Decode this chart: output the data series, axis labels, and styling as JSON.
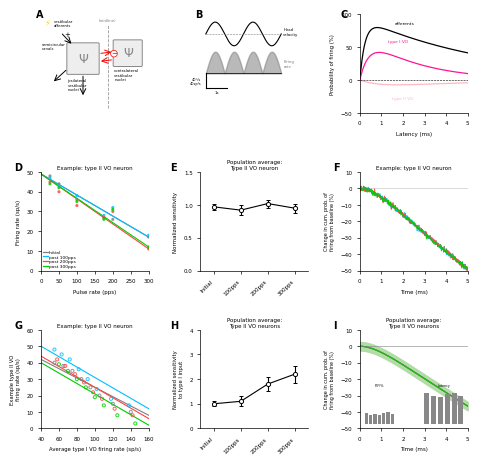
{
  "panel_D": {
    "title": "Example: type II VO neuron",
    "xlabel": "Pulse rate (pps)",
    "ylabel": "Firing rate (sp/s)",
    "xlim": [
      0,
      300
    ],
    "ylim": [
      0,
      50
    ],
    "conditions": [
      "Initial",
      "post 100pps",
      "post 200pps",
      "post 300pps"
    ],
    "colors": [
      "#808080",
      "#00BFFF",
      "#FF4444",
      "#00CC00"
    ],
    "scatter_x": {
      "Initial": [
        25,
        50,
        100,
        175,
        200,
        300
      ],
      "post 100pps": [
        25,
        50,
        100,
        175,
        200,
        300
      ],
      "post 200pps": [
        25,
        50,
        100,
        175,
        200,
        300
      ],
      "post 300pps": [
        25,
        50,
        100,
        175,
        200,
        300
      ]
    },
    "scatter_y": {
      "Initial": [
        48,
        44,
        36,
        27,
        26,
        17
      ],
      "post 100pps": [
        47,
        43,
        38,
        28,
        32,
        18
      ],
      "post 200pps": [
        45,
        40,
        33,
        27,
        30,
        11
      ],
      "post 300pps": [
        44,
        42,
        35,
        26,
        31,
        12
      ]
    },
    "line_x": [
      0,
      300
    ],
    "line_y": {
      "Initial": [
        49,
        17
      ],
      "post 100pps": [
        49,
        17
      ],
      "post 200pps": [
        49,
        11
      ],
      "post 300pps": [
        49,
        12
      ]
    }
  },
  "panel_E": {
    "title": "Population average:\nType II VO neuron",
    "ylabel": "Normalized sensitivity",
    "xlim_labels": [
      "Initial",
      "100pps",
      "200pps",
      "300pps"
    ],
    "ylim": [
      0,
      1.5
    ],
    "yticks": [
      0,
      0.5,
      1,
      1.5
    ],
    "values": [
      0.97,
      0.92,
      1.02,
      0.95
    ],
    "errors": [
      0.05,
      0.08,
      0.06,
      0.07
    ]
  },
  "panel_F": {
    "title": "Example: type II VO neuron",
    "xlabel": "Time (ms)",
    "ylabel": "Change in cum. prob. of\nfiring from baseline (%)",
    "xlim": [
      0,
      5
    ],
    "ylim": [
      -50,
      10
    ],
    "colors": [
      "#808080",
      "#00BFFF",
      "#FF4444",
      "#00CC00"
    ]
  },
  "panel_G": {
    "title": "Example: type II VO neuron",
    "xlabel": "Average type I VO firing rate (sp/s)",
    "ylabel": "Example type II VO\nfiring rate (sp/s)",
    "xlim": [
      40,
      160
    ],
    "ylim": [
      0,
      60
    ],
    "colors": [
      "#808080",
      "#00BFFF",
      "#FF4444",
      "#00CC00"
    ],
    "scatter_x": {
      "Initial": [
        55,
        65,
        75,
        85,
        95,
        105,
        120,
        140
      ],
      "post 100pps": [
        55,
        63,
        72,
        82,
        92,
        102,
        118,
        138
      ],
      "post 200pps": [
        58,
        67,
        78,
        88,
        98,
        108,
        122,
        142
      ],
      "post 300pps": [
        60,
        70,
        80,
        90,
        100,
        110,
        125,
        145
      ]
    },
    "scatter_y": {
      "Initial": [
        40,
        38,
        35,
        30,
        25,
        20,
        15,
        10
      ],
      "post 100pps": [
        48,
        45,
        42,
        36,
        30,
        24,
        18,
        14
      ],
      "post 200pps": [
        42,
        38,
        33,
        28,
        22,
        18,
        12,
        8
      ],
      "post 300pps": [
        39,
        35,
        30,
        25,
        19,
        14,
        8,
        3
      ]
    },
    "line_x": [
      40,
      160
    ],
    "line_y": {
      "Initial": [
        42,
        8
      ],
      "post 100pps": [
        50,
        12
      ],
      "post 200pps": [
        44,
        6
      ],
      "post 300pps": [
        40,
        2
      ]
    }
  },
  "panel_H": {
    "title": "Population average:\nType II VO neurons",
    "ylabel": "Normalized sensitivity\nto type I input",
    "xlim_labels": [
      "Initial",
      "100pps",
      "200pps",
      "300pps"
    ],
    "ylim": [
      0,
      4
    ],
    "yticks": [
      0,
      1,
      2,
      3,
      4
    ],
    "values": [
      1.0,
      1.1,
      1.8,
      2.2
    ],
    "errors": [
      0.1,
      0.2,
      0.3,
      0.35
    ]
  },
  "panel_I": {
    "title": "Population average:\nType II VO neurons",
    "xlabel": "Time (ms)",
    "ylabel": "Change in cum. prob. of\nfiring from baseline (%)",
    "xlim": [
      0,
      5
    ],
    "ylim": [
      -50,
      10
    ],
    "colors": [
      "#808080",
      "#00BFFF",
      "#FF4444",
      "#00CC00"
    ],
    "shade_colors": [
      "#D0D0D0",
      "#ADD8E6",
      "#FFB6B6",
      "#90EE90"
    ]
  },
  "panel_C": {
    "xlabel": "Latency (ms)",
    "ylabel": "Probability of firing (%)",
    "xlim": [
      0,
      5
    ],
    "ylim": [
      -50,
      100
    ],
    "yticks": [
      -50,
      0,
      50,
      100
    ]
  },
  "conditions": [
    "Initial",
    "post 100pps",
    "post 200pps",
    "post 300pps"
  ]
}
